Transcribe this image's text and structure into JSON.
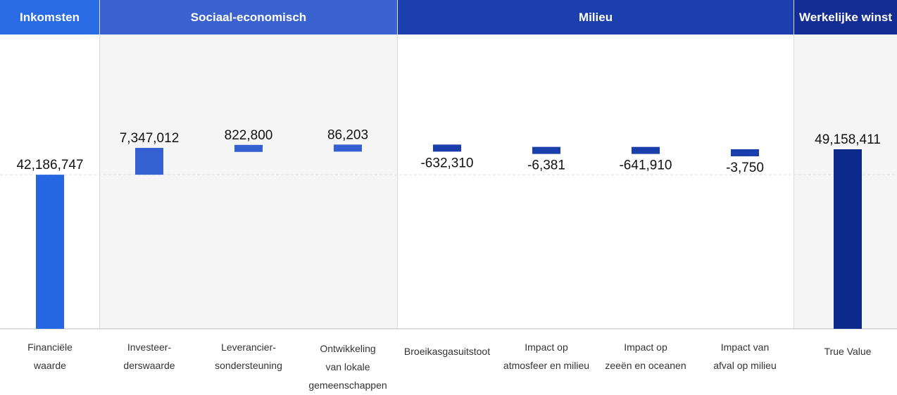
{
  "colors": {
    "header_income": "#2a6be6",
    "header_socio": "#3a63d0",
    "header_env": "#1c3fb0",
    "header_profit": "#142d95",
    "bar_income": "#2567e3",
    "bar_socio": "#3460d2",
    "bar_env": "#1b3ead",
    "bar_total": "#0c2a8c",
    "band_bg": "#f5f5f5"
  },
  "headers": {
    "income": "Inkomsten",
    "socio": "Sociaal-economisch",
    "env": "Milieu",
    "profit": "Werkelijke winst"
  },
  "chart_data": {
    "type": "bar",
    "subtype": "waterfall",
    "ylim": [
      0,
      49158411
    ],
    "grid": "dashed-horizontal",
    "categories": [
      "Financiële\nwaarde",
      "Investeer-\nderswaarde",
      "Leverancier-\nsondersteuning",
      "Ontwikkeling\nvan lokale\ngemeenschappen",
      "Broeikasgasuitstoot",
      "Impact op\natmosfeer en milieu",
      "Impact op\nzeeën en oceanen",
      "Impact van\nafval op milieu",
      "True Value"
    ],
    "groups": [
      "income",
      "socio",
      "socio",
      "socio",
      "env",
      "env",
      "env",
      "env",
      "total"
    ],
    "values": [
      42186747,
      7347012,
      822800,
      86203,
      -632310,
      -6381,
      -641910,
      -3750,
      49158411
    ],
    "labels": [
      "42,186,747",
      "7,347,012",
      "822,800",
      "86,203",
      "-632,310",
      "-6,381",
      "-641,910",
      "-3,750",
      "49,158,411"
    ]
  }
}
